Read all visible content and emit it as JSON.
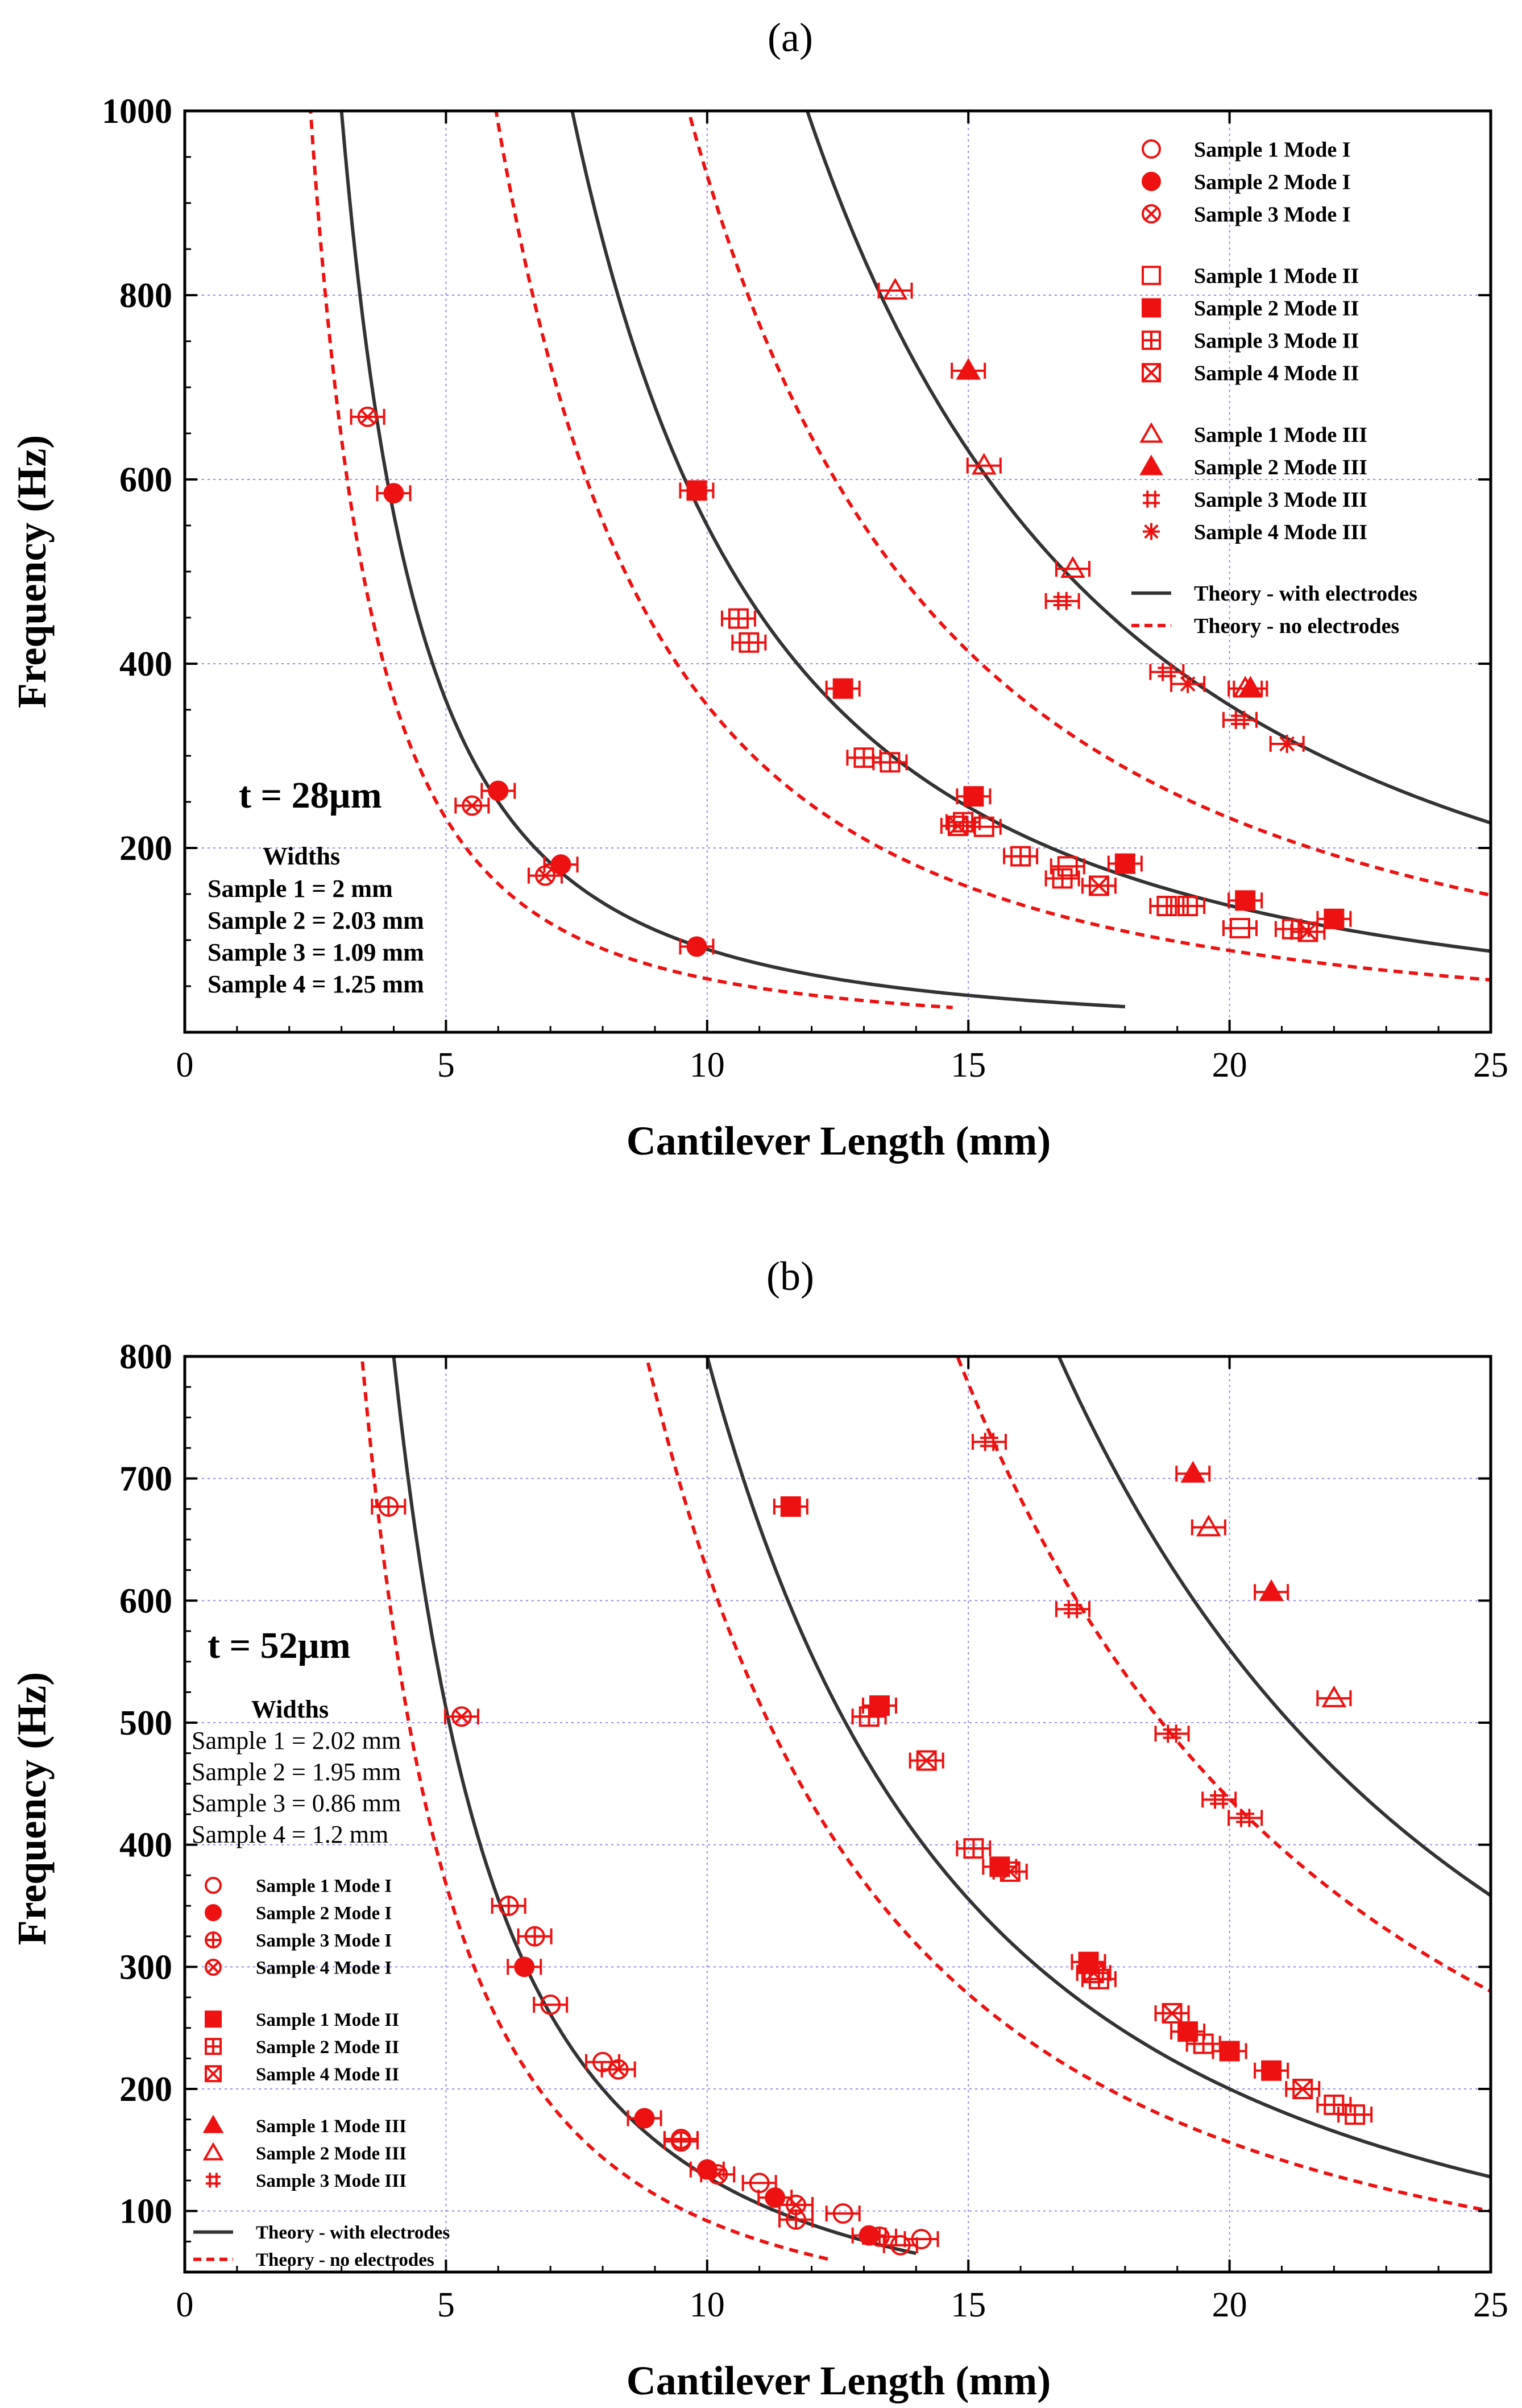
{
  "chart_data": [
    {
      "type": "scatter",
      "panel_label": "(a)",
      "xlabel": "Cantilever Length (mm)",
      "ylabel": "Frequency (Hz)",
      "xlim": [
        0,
        25
      ],
      "ylim": [
        0,
        1000
      ],
      "xticks": [
        "0",
        "5",
        "10",
        "15",
        "20",
        "25"
      ],
      "yticks": [
        "200",
        "400",
        "600",
        "800",
        "1000"
      ],
      "grid": true,
      "thickness_label": "t = 28µm",
      "widths": {
        "title": "Widths",
        "lines": [
          "Sample 1 = 2 mm",
          "Sample 2 = 2.03 mm",
          "Sample 3 = 1.09 mm",
          "Sample 4 = 1.25 mm"
        ]
      },
      "legend": {
        "position": "top-right",
        "entries": [
          {
            "label": "Sample 1 Mode I",
            "marker": "circle-open"
          },
          {
            "label": "Sample 2 Mode I",
            "marker": "circle-filled"
          },
          {
            "label": "Sample 3 Mode I",
            "marker": "circle-x"
          },
          {
            "label": "Sample 1 Mode II",
            "marker": "square-open"
          },
          {
            "label": "Sample 2 Mode II",
            "marker": "square-filled"
          },
          {
            "label": "Sample 3 Mode II",
            "marker": "square-plus"
          },
          {
            "label": "Sample 4 Mode II",
            "marker": "square-x"
          },
          {
            "label": "Sample 1 Mode III",
            "marker": "triangle-open"
          },
          {
            "label": "Sample 2 Mode III",
            "marker": "triangle-filled"
          },
          {
            "label": "Sample 3 Mode III",
            "marker": "hash"
          },
          {
            "label": "Sample 4 Mode III",
            "marker": "star"
          },
          {
            "label": "Theory - with electrodes",
            "marker": "line-solid"
          },
          {
            "label": "Theory - no electrodes",
            "marker": "line-dashed"
          }
        ]
      },
      "curves": [
        {
          "name": "Theory - with electrodes",
          "style": "solid",
          "k": 9000,
          "xmin": 3.0,
          "xmax": 18.0
        },
        {
          "name": "Theory - with electrodes",
          "style": "solid",
          "k": 55000,
          "xmin": 7.4,
          "xmax": 25
        },
        {
          "name": "Theory - with electrodes",
          "style": "solid",
          "k": 142000,
          "xmin": 11.9,
          "xmax": 25
        },
        {
          "name": "Theory - no electrodes",
          "style": "dashed",
          "k": 5800,
          "xmin": 2.4,
          "xmax": 14.7
        },
        {
          "name": "Theory - no electrodes",
          "style": "dashed",
          "k": 35500,
          "xmin": 5.9,
          "xmax": 25
        },
        {
          "name": "Theory - no electrodes",
          "style": "dashed",
          "k": 93000,
          "xmin": 9.6,
          "xmax": 25
        }
      ],
      "series": [
        {
          "name": "Sample 1 Mode I",
          "marker": "circle-open",
          "points": []
        },
        {
          "name": "Sample 2 Mode I",
          "marker": "circle-filled",
          "points": [
            [
              4.0,
              585
            ],
            [
              6.0,
              262
            ],
            [
              7.2,
              182
            ],
            [
              9.8,
              93
            ]
          ]
        },
        {
          "name": "Sample 3 Mode I",
          "marker": "circle-x",
          "points": [
            [
              3.5,
              668
            ],
            [
              5.5,
              246
            ],
            [
              6.9,
              170
            ]
          ]
        },
        {
          "name": "Sample 1 Mode II",
          "marker": "square-open",
          "points": [
            [
              15.3,
              223
            ],
            [
              16.9,
              180
            ],
            [
              20.2,
              113
            ]
          ]
        },
        {
          "name": "Sample 2 Mode II",
          "marker": "square-filled",
          "points": [
            [
              9.8,
              588
            ],
            [
              12.6,
              373
            ],
            [
              15.1,
              256
            ],
            [
              18.0,
              183
            ],
            [
              20.3,
              143
            ],
            [
              22.0,
              123
            ]
          ]
        },
        {
          "name": "Sample 3 Mode II",
          "marker": "square-plus",
          "points": [
            [
              10.6,
              449
            ],
            [
              10.8,
              423
            ],
            [
              13.0,
              298
            ],
            [
              13.5,
              293
            ],
            [
              14.9,
              228
            ],
            [
              16.0,
              191
            ],
            [
              16.8,
              167
            ],
            [
              18.8,
              137
            ],
            [
              19.2,
              137
            ],
            [
              21.2,
              112
            ]
          ]
        },
        {
          "name": "Sample 4 Mode II",
          "marker": "square-x",
          "points": [
            [
              14.8,
              224
            ],
            [
              17.5,
              159
            ],
            [
              21.5,
              109
            ]
          ]
        },
        {
          "name": "Sample 1 Mode III",
          "marker": "triangle-open",
          "points": [
            [
              13.6,
              805
            ],
            [
              15.3,
              615
            ],
            [
              17.0,
              503
            ],
            [
              20.3,
              373
            ]
          ]
        },
        {
          "name": "Sample 2 Mode III",
          "marker": "triangle-filled",
          "points": [
            [
              15.0,
              718
            ],
            [
              20.4,
              373
            ]
          ]
        },
        {
          "name": "Sample 3 Mode III",
          "marker": "hash",
          "points": [
            [
              16.8,
              468
            ],
            [
              18.8,
              391
            ],
            [
              20.2,
              339
            ]
          ]
        },
        {
          "name": "Sample 4 Mode III",
          "marker": "star",
          "points": [
            [
              19.2,
              378
            ],
            [
              21.1,
              313
            ]
          ]
        }
      ]
    },
    {
      "type": "scatter",
      "panel_label": "(b)",
      "xlabel": "Cantilever Length (mm)",
      "ylabel": "Frequency (Hz)",
      "xlim": [
        0,
        25
      ],
      "ylim": [
        50,
        800
      ],
      "xticks": [
        "0",
        "5",
        "10",
        "15",
        "20",
        "25"
      ],
      "yticks": [
        "100",
        "200",
        "300",
        "400",
        "500",
        "600",
        "700",
        "800"
      ],
      "grid": true,
      "thickness_label": "t = 52µm",
      "widths": {
        "title": "Widths",
        "lines": [
          "Sample 1 = 2.02 mm",
          "Sample 2  = 1.95 mm",
          "Sample 3 = 0.86 mm",
          "Sample 4 = 1.2 mm"
        ]
      },
      "legend": {
        "position": "bottom-left",
        "entries": [
          {
            "label": "Sample 1 Mode I",
            "marker": "circle-open"
          },
          {
            "label": "Sample 2 Mode I",
            "marker": "circle-filled"
          },
          {
            "label": "Sample 3 Mode I",
            "marker": "circle-plus"
          },
          {
            "label": "Sample 4 Mode I",
            "marker": "circle-x"
          },
          {
            "label": "Sample 1 Mode II",
            "marker": "square-filled"
          },
          {
            "label": "Sample 2 Mode II",
            "marker": "square-plus"
          },
          {
            "label": "Sample 4 Mode II",
            "marker": "square-x"
          },
          {
            "label": "Sample 1 Mode III",
            "marker": "triangle-filled"
          },
          {
            "label": "Sample 2 Mode III",
            "marker": "triangle-open"
          },
          {
            "label": "Sample 3 Mode III",
            "marker": "hash"
          },
          {
            "label": "Theory - with electrodes",
            "marker": "line-solid"
          },
          {
            "label": "Theory - no electrodes",
            "marker": "line-dashed"
          }
        ]
      },
      "curves": [
        {
          "name": "Theory - with electrodes",
          "style": "solid",
          "k": 12800,
          "xmin": 4.0,
          "xmax": 14.0
        },
        {
          "name": "Theory - with electrodes",
          "style": "solid",
          "k": 80000,
          "xmin": 10.0,
          "xmax": 25
        },
        {
          "name": "Theory - with electrodes",
          "style": "solid",
          "k": 224000,
          "xmin": 16.7,
          "xmax": 25
        },
        {
          "name": "Theory - no electrodes",
          "style": "dashed",
          "k": 9200,
          "xmin": 3.4,
          "xmax": 12.4
        },
        {
          "name": "Theory - no electrodes",
          "style": "dashed",
          "k": 62500,
          "xmin": 8.8,
          "xmax": 25
        },
        {
          "name": "Theory - no electrodes",
          "style": "dashed",
          "k": 175000,
          "xmin": 14.8,
          "xmax": 25
        }
      ],
      "series": [
        {
          "name": "Sample 1 Mode I",
          "marker": "circle-open",
          "points": [
            [
              7.0,
              269
            ],
            [
              8.0,
              222
            ],
            [
              9.5,
              159
            ],
            [
              11.0,
              123
            ],
            [
              12.6,
              98
            ],
            [
              13.7,
              72
            ],
            [
              14.1,
              77
            ]
          ]
        },
        {
          "name": "Sample 2 Mode I",
          "marker": "circle-filled",
          "points": [
            [
              6.5,
              300
            ],
            [
              8.8,
              176
            ],
            [
              10.0,
              134
            ],
            [
              11.3,
              111
            ],
            [
              13.1,
              80
            ]
          ]
        },
        {
          "name": "Sample 3 Mode I",
          "marker": "circle-plus",
          "points": [
            [
              3.9,
              677
            ],
            [
              6.2,
              350
            ],
            [
              6.7,
              325
            ],
            [
              9.5,
              157
            ],
            [
              11.7,
              93
            ],
            [
              13.3,
              79
            ]
          ]
        },
        {
          "name": "Sample 4 Mode I",
          "marker": "circle-x",
          "points": [
            [
              5.3,
              505
            ],
            [
              8.3,
              216
            ],
            [
              10.2,
              130
            ],
            [
              11.7,
              105
            ]
          ]
        },
        {
          "name": "Sample 1 Mode II",
          "marker": "square-filled",
          "points": [
            [
              11.6,
              677
            ],
            [
              13.3,
              514
            ],
            [
              15.6,
              382
            ],
            [
              17.3,
              304
            ],
            [
              19.2,
              247
            ],
            [
              20.0,
              231
            ],
            [
              20.8,
              215
            ]
          ]
        },
        {
          "name": "Sample 2 Mode II",
          "marker": "square-plus",
          "points": [
            [
              13.1,
              505
            ],
            [
              15.1,
              397
            ],
            [
              17.5,
              290
            ],
            [
              19.5,
              237
            ],
            [
              22.0,
              187
            ],
            [
              22.4,
              179
            ]
          ]
        },
        {
          "name": "Sample 4 Mode II",
          "marker": "square-x",
          "points": [
            [
              14.2,
              469
            ],
            [
              15.8,
              378
            ],
            [
              17.4,
              295
            ],
            [
              18.9,
              262
            ],
            [
              21.4,
              200
            ]
          ]
        },
        {
          "name": "Sample 1 Mode III",
          "marker": "triangle-filled",
          "points": [
            [
              19.3,
              704
            ],
            [
              20.8,
              607
            ]
          ]
        },
        {
          "name": "Sample 2 Mode III",
          "marker": "triangle-open",
          "points": [
            [
              19.6,
              660
            ],
            [
              22.0,
              520
            ]
          ]
        },
        {
          "name": "Sample 3 Mode III",
          "marker": "hash",
          "points": [
            [
              15.4,
              730
            ],
            [
              17.0,
              593
            ],
            [
              18.9,
              491
            ],
            [
              19.8,
              437
            ],
            [
              20.3,
              422
            ]
          ]
        }
      ]
    }
  ]
}
